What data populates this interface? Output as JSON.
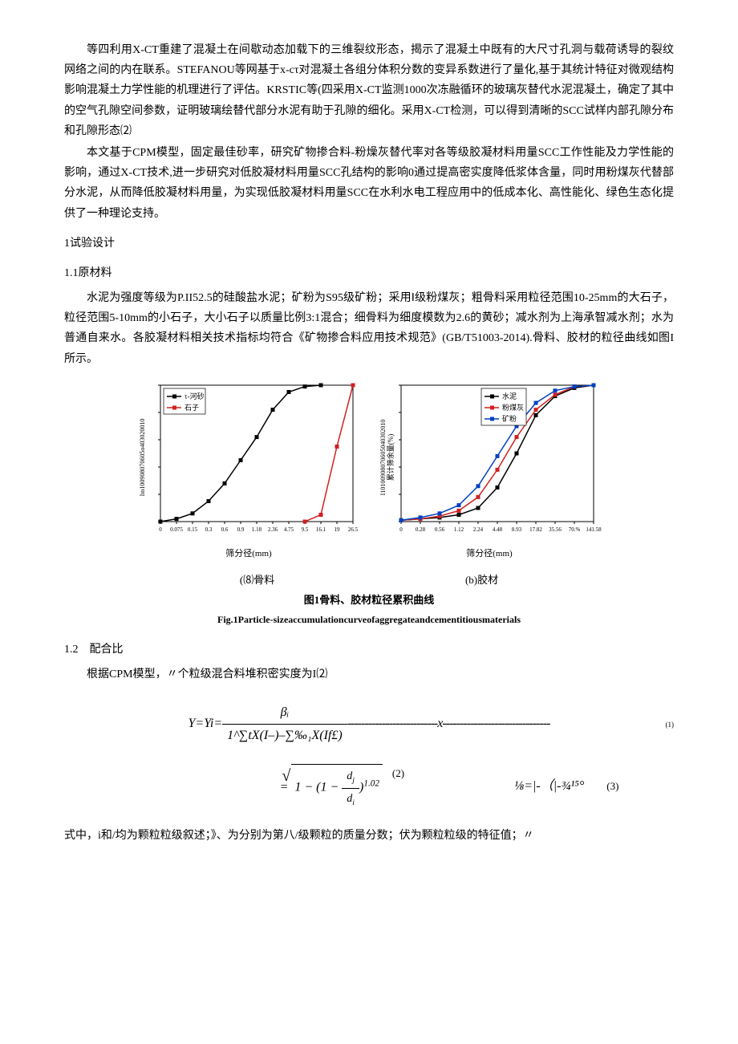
{
  "para1": "等四利用X-CT重建了混凝土在间歇动态加载下的三维裂纹形态，揭示了混凝土中既有的大尺寸孔洞与载荷诱导的裂纹网络之间的内在联系。STEFANOU等网基于x-cτ对混凝土各组分体积分数的变异系数进行了量化,基于其统计特征对微观结构影响混凝土力学性能的机理进行了评估。KRSTIC等(四采用X-CT监测1000次冻融循环的玻璃灰替代水泥混凝土，确定了其中的空气孔隙空间参数，证明玻璃绘替代部分水泥有助于孔隙的细化。采用X-CT检测，可以得到清晰的SCC试样内部孔隙分布和孔隙形态⑵",
  "para2": "本文基于CPM模型，固定最佳砂率，研究矿物掺合料-粉燥灰替代率对各等级胶凝材料用量SCC工作性能及力学性能的影响，通过X-CT技术,进一步研究对低胶凝材料用量SCC孔结构的影响0通过提高密实度降低浆体含量，同时用粉煤灰代替部分水泥，从而降低胶凝材料用量，为实现低胶凝材料用量SCC在水利水电工程应用中的低成本化、高性能化、绿色生态化提供了一种理论支持。",
  "sec1": "1试验设计",
  "sec11": "1.1原材料",
  "para3": "水泥为强度等级为P.II52.5的硅酸盐水泥；矿粉为S95级矿粉；采用Ⅰ级粉煤灰；粗骨料采用粒径范围10-25mm的大石子，粒径范围5-10mm的小石子，大小石子以质量比例3:1混合；细骨料为细度模数为2.6的黄砂；减水剂为上海承智减水剂；水为普通自来水。各胶凝材料相关技术指标均符合《矿物掺合料应用技术规范》(GB/T51003-2014).骨料、胶材的粒径曲线如图I所示。",
  "chart_a": {
    "type": "line",
    "legend": [
      {
        "label": "τ-河砂",
        "color": "#000000",
        "marker": "square"
      },
      {
        "label": "石子",
        "color": "#d02020",
        "marker": "square"
      }
    ],
    "ylabel": "Iιo100908070605o403020010",
    "xlabel": "筛分径(mm)",
    "xticks": [
      "0",
      "0.075",
      "0.15",
      "0.3",
      "0.6",
      "0.9",
      "1.18",
      "2.36",
      "4.75",
      "9.5",
      "16.1",
      "19",
      "26.5"
    ],
    "series": [
      {
        "name": "河砂",
        "color": "#000000",
        "points": [
          [
            0,
            0
          ],
          [
            1,
            2
          ],
          [
            2,
            6
          ],
          [
            3,
            15
          ],
          [
            4,
            28
          ],
          [
            5,
            45
          ],
          [
            6,
            62
          ],
          [
            7,
            82
          ],
          [
            8,
            95
          ],
          [
            9,
            99
          ],
          [
            10,
            100
          ]
        ]
      },
      {
        "name": "石子",
        "color": "#d02020",
        "points": [
          [
            9,
            0
          ],
          [
            10,
            5
          ],
          [
            11,
            55
          ],
          [
            12,
            100
          ]
        ]
      }
    ],
    "background": "#ffffff",
    "grid_color": "#000000",
    "line_width": 1.5
  },
  "chart_b": {
    "type": "line",
    "legend": [
      {
        "label": "水泥",
        "color": "#000000",
        "marker": "square"
      },
      {
        "label": "粉煤灰",
        "color": "#d02020",
        "marker": "circle"
      },
      {
        "label": "矿粉",
        "color": "#0040c0",
        "marker": "triangle"
      }
    ],
    "ylabel": "I10100908070605040302010",
    "ylabel2": "累计筛余量(%)",
    "xlabel": "筛分径(mm)",
    "xticks": [
      "0",
      "0.28",
      "0.56",
      "1.12",
      "2.24",
      "4.48",
      "8.93",
      "17.82",
      "35.56",
      "70.%",
      "141.58"
    ],
    "series": [
      {
        "name": "水泥",
        "color": "#000000",
        "points": [
          [
            0,
            1
          ],
          [
            1,
            2
          ],
          [
            2,
            3
          ],
          [
            3,
            5
          ],
          [
            4,
            10
          ],
          [
            5,
            25
          ],
          [
            6,
            50
          ],
          [
            7,
            78
          ],
          [
            8,
            92
          ],
          [
            9,
            98
          ],
          [
            10,
            100
          ]
        ]
      },
      {
        "name": "粉煤灰",
        "color": "#d02020",
        "points": [
          [
            0,
            1
          ],
          [
            1,
            2
          ],
          [
            2,
            4
          ],
          [
            3,
            8
          ],
          [
            4,
            18
          ],
          [
            5,
            38
          ],
          [
            6,
            62
          ],
          [
            7,
            82
          ],
          [
            8,
            93
          ],
          [
            9,
            99
          ],
          [
            10,
            100
          ]
        ]
      },
      {
        "name": "矿粉",
        "color": "#0040c0",
        "points": [
          [
            0,
            1
          ],
          [
            1,
            3
          ],
          [
            2,
            6
          ],
          [
            3,
            12
          ],
          [
            4,
            26
          ],
          [
            5,
            48
          ],
          [
            6,
            70
          ],
          [
            7,
            87
          ],
          [
            8,
            96
          ],
          [
            9,
            99
          ],
          [
            10,
            100
          ]
        ]
      }
    ],
    "background": "#ffffff",
    "grid_color": "#000000",
    "line_width": 1.5
  },
  "caption_a": "(⑻骨料",
  "caption_b": "(b)胶材",
  "fig_title": "图1骨料、胶材粒径累积曲线",
  "fig_title_en": "Fig.1Particle-sizeaccumulationcurveofaggregateandcementitiousmaterials",
  "sec12": "1.2 配合比",
  "para4": "根据CPM模型，〃个粒级混合料堆积密实度为I⑵",
  "formula1": {
    "lhs": "Y=Yi=",
    "num": "βᵢ",
    "den": "1^∑tX(I–)–∑‰₁X(If£)",
    "num_label": "(1)"
  },
  "formula2": {
    "expr_inner": "1 − (1 − dⱼ / dᵢ)¹·⁰²",
    "num_label": "(2)"
  },
  "formula3": {
    "expr": "⅛=|-（|-¾¹⁵°",
    "num_label": "(3)"
  },
  "para5": "式中，i和/均为颗粒粒级叙述；》、为分别为第八/级颗粒的质量分数；伏为颗粒粒级的特征值；〃"
}
